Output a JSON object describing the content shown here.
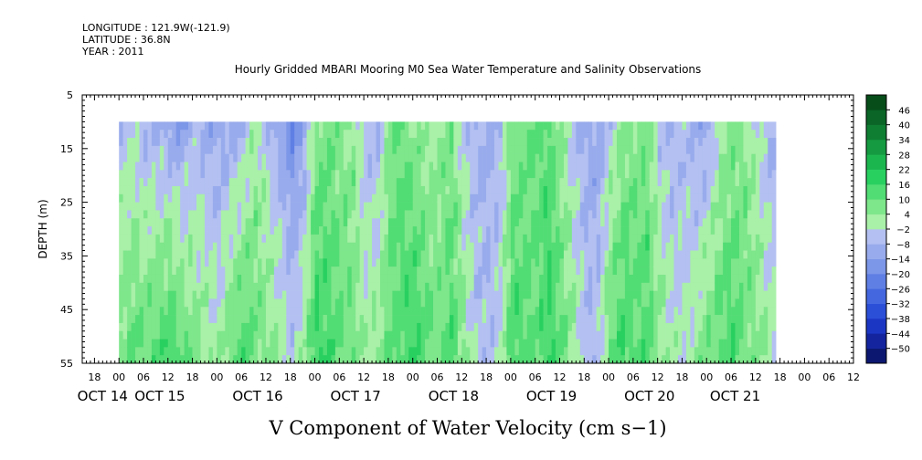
{
  "header": {
    "longitude": "LONGITUDE : 121.9W(-121.9)",
    "latitude": "LATITUDE : 36.8N",
    "year": "YEAR : 2011"
  },
  "chart_data": {
    "type": "heatmap",
    "title": "Hourly Gridded MBARI Mooring M0 Sea Water Temperature and Salinity Observations",
    "xlabel": "V Component of Water Velocity (cm s−1)",
    "ylabel": "DEPTH (m)",
    "y_range": [
      5,
      55
    ],
    "y_inverted": true,
    "y_ticks": [
      5,
      15,
      25,
      35,
      45,
      55
    ],
    "data_depth_range": [
      10,
      55
    ],
    "x_range_hours": [
      -9,
      180
    ],
    "x_ticks": [
      {
        "h": -6,
        "label": "18"
      },
      {
        "h": 0,
        "label": "00"
      },
      {
        "h": 6,
        "label": "06"
      },
      {
        "h": 12,
        "label": "12"
      },
      {
        "h": 18,
        "label": "18"
      },
      {
        "h": 24,
        "label": "00"
      },
      {
        "h": 30,
        "label": "06"
      },
      {
        "h": 36,
        "label": "12"
      },
      {
        "h": 42,
        "label": "18"
      },
      {
        "h": 48,
        "label": "00"
      },
      {
        "h": 54,
        "label": "06"
      },
      {
        "h": 60,
        "label": "12"
      },
      {
        "h": 66,
        "label": "18"
      },
      {
        "h": 72,
        "label": "00"
      },
      {
        "h": 78,
        "label": "06"
      },
      {
        "h": 84,
        "label": "12"
      },
      {
        "h": 90,
        "label": "18"
      },
      {
        "h": 96,
        "label": "00"
      },
      {
        "h": 102,
        "label": "06"
      },
      {
        "h": 108,
        "label": "12"
      },
      {
        "h": 114,
        "label": "18"
      },
      {
        "h": 120,
        "label": "00"
      },
      {
        "h": 126,
        "label": "06"
      },
      {
        "h": 132,
        "label": "12"
      },
      {
        "h": 138,
        "label": "18"
      },
      {
        "h": 144,
        "label": "00"
      },
      {
        "h": 150,
        "label": "06"
      },
      {
        "h": 156,
        "label": "12"
      },
      {
        "h": 162,
        "label": "18"
      },
      {
        "h": 168,
        "label": "00"
      },
      {
        "h": 174,
        "label": "06"
      },
      {
        "h": 180,
        "label": "12"
      }
    ],
    "date_labels": [
      {
        "h": -4,
        "label": "OCT 14"
      },
      {
        "h": 10,
        "label": "OCT 15"
      },
      {
        "h": 34,
        "label": "OCT 16"
      },
      {
        "h": 58,
        "label": "OCT 17"
      },
      {
        "h": 82,
        "label": "OCT 18"
      },
      {
        "h": 106,
        "label": "OCT 19"
      },
      {
        "h": 130,
        "label": "OCT 20"
      },
      {
        "h": 151,
        "label": "OCT 21"
      }
    ],
    "data_hours": [
      0,
      161
    ],
    "color_scale": {
      "levels": [
        -50,
        -44,
        -38,
        -32,
        -26,
        -20,
        -14,
        -8,
        -2,
        4,
        10,
        16,
        22,
        28,
        34,
        40,
        46
      ],
      "colors": [
        "#0c1770",
        "#13249e",
        "#1c36c4",
        "#2c4fd8",
        "#4467e0",
        "#5f7fe4",
        "#7c96e8",
        "#98abec",
        "#b3c0f1",
        "#a9f0a8",
        "#7ee68b",
        "#52dc74",
        "#28d060",
        "#1cb64f",
        "#159a41",
        "#0f7e33",
        "#0a6526",
        "#064d1a"
      ]
    },
    "profile_columns": [
      {
        "h": 0,
        "surface": -6,
        "deep": 8
      },
      {
        "h": 3,
        "surface": -4,
        "deep": 12
      },
      {
        "h": 6,
        "surface": -8,
        "deep": 10
      },
      {
        "h": 9,
        "surface": -10,
        "deep": 14
      },
      {
        "h": 12,
        "surface": -12,
        "deep": 16
      },
      {
        "h": 15,
        "surface": -14,
        "deep": 12
      },
      {
        "h": 18,
        "surface": -8,
        "deep": 8
      },
      {
        "h": 21,
        "surface": -10,
        "deep": 4
      },
      {
        "h": 24,
        "surface": -12,
        "deep": 2
      },
      {
        "h": 27,
        "surface": -10,
        "deep": 10
      },
      {
        "h": 30,
        "surface": -8,
        "deep": 14
      },
      {
        "h": 33,
        "surface": 2,
        "deep": 10
      },
      {
        "h": 36,
        "surface": -6,
        "deep": 6
      },
      {
        "h": 39,
        "surface": -14,
        "deep": 4
      },
      {
        "h": 42,
        "surface": -20,
        "deep": -2
      },
      {
        "h": 45,
        "surface": -12,
        "deep": 4
      },
      {
        "h": 48,
        "surface": 6,
        "deep": 18
      },
      {
        "h": 51,
        "surface": 8,
        "deep": 14
      },
      {
        "h": 54,
        "surface": 6,
        "deep": 10
      },
      {
        "h": 57,
        "surface": 4,
        "deep": 8
      },
      {
        "h": 60,
        "surface": -6,
        "deep": 2
      },
      {
        "h": 63,
        "surface": -10,
        "deep": 6
      },
      {
        "h": 66,
        "surface": 8,
        "deep": 10
      },
      {
        "h": 69,
        "surface": 10,
        "deep": 14
      },
      {
        "h": 72,
        "surface": 4,
        "deep": 16
      },
      {
        "h": 75,
        "surface": 2,
        "deep": 12
      },
      {
        "h": 78,
        "surface": 4,
        "deep": 8
      },
      {
        "h": 81,
        "surface": 6,
        "deep": 14
      },
      {
        "h": 84,
        "surface": -4,
        "deep": 6
      },
      {
        "h": 87,
        "surface": -8,
        "deep": -4
      },
      {
        "h": 90,
        "surface": -10,
        "deep": -6
      },
      {
        "h": 93,
        "surface": -6,
        "deep": -2
      },
      {
        "h": 96,
        "surface": 6,
        "deep": 16
      },
      {
        "h": 99,
        "surface": 8,
        "deep": 12
      },
      {
        "h": 102,
        "surface": 10,
        "deep": 10
      },
      {
        "h": 105,
        "surface": 12,
        "deep": 18
      },
      {
        "h": 108,
        "surface": 4,
        "deep": 10
      },
      {
        "h": 111,
        "surface": -6,
        "deep": 4
      },
      {
        "h": 114,
        "surface": -10,
        "deep": -6
      },
      {
        "h": 117,
        "surface": -12,
        "deep": -4
      },
      {
        "h": 120,
        "surface": -4,
        "deep": 10
      },
      {
        "h": 123,
        "surface": 4,
        "deep": 16
      },
      {
        "h": 126,
        "surface": 6,
        "deep": 12
      },
      {
        "h": 129,
        "surface": 8,
        "deep": 14
      },
      {
        "h": 132,
        "surface": -6,
        "deep": 6
      },
      {
        "h": 135,
        "surface": -10,
        "deep": 2
      },
      {
        "h": 138,
        "surface": -6,
        "deep": -2
      },
      {
        "h": 141,
        "surface": -10,
        "deep": 4
      },
      {
        "h": 144,
        "surface": -12,
        "deep": 10
      },
      {
        "h": 147,
        "surface": 2,
        "deep": 12
      },
      {
        "h": 150,
        "surface": 6,
        "deep": 14
      },
      {
        "h": 153,
        "surface": 4,
        "deep": 10
      },
      {
        "h": 156,
        "surface": -2,
        "deep": 6
      },
      {
        "h": 159,
        "surface": -8,
        "deep": 2
      },
      {
        "h": 161,
        "surface": -10,
        "deep": 0
      }
    ]
  }
}
